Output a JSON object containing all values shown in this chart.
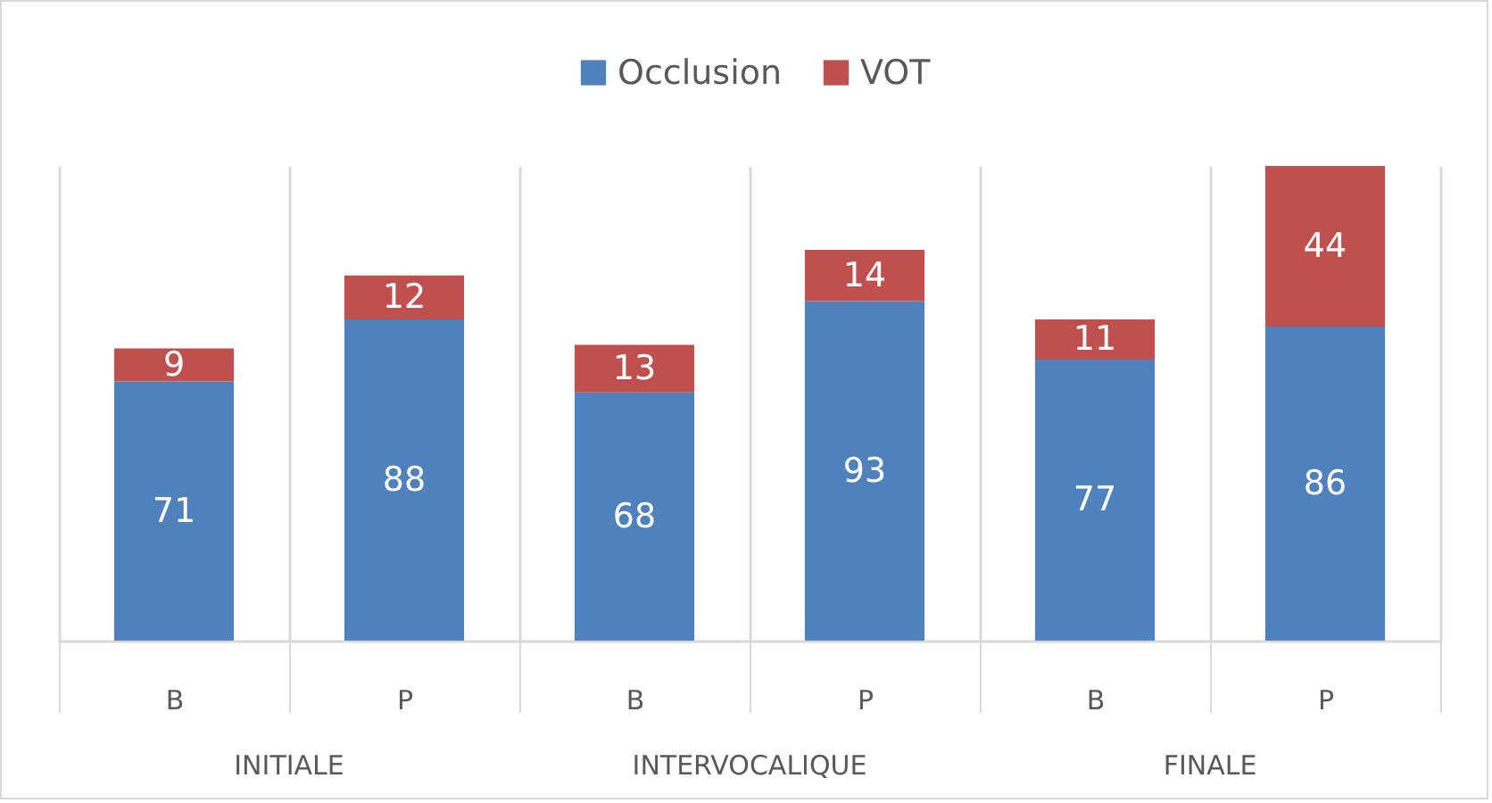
{
  "chart_data": {
    "type": "bar",
    "stacked": true,
    "categories": [
      "B",
      "P",
      "B",
      "P",
      "B",
      "P"
    ],
    "annotations": [
      "INITIALE",
      "INTERVOCALIQUE",
      "FINALE"
    ],
    "series": [
      {
        "name": "Occlusion",
        "color": "#4f81bd",
        "values": [
          71,
          88,
          68,
          93,
          77,
          86
        ]
      },
      {
        "name": "VOT",
        "color": "#c0504d",
        "values": [
          9,
          12,
          13,
          14,
          11,
          44
        ]
      }
    ],
    "data_labels": true,
    "legend": "top",
    "grid": "x"
  }
}
